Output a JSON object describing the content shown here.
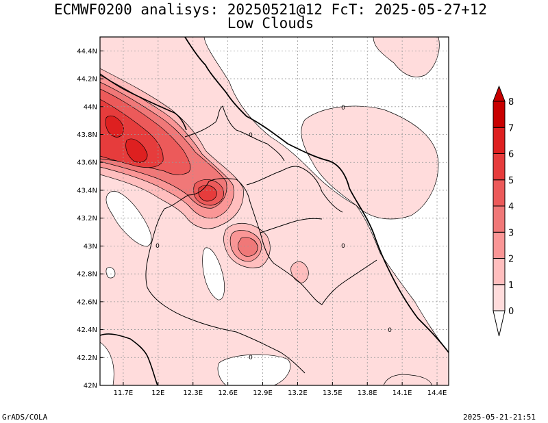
{
  "header": {
    "title": "ECMWF0200 analisys: 20250521@12 FcT: 2025-05-27+12",
    "subtitle": "Low Clouds"
  },
  "map": {
    "lat_labels": [
      "44.4N",
      "44.2N",
      "44N",
      "43.8N",
      "43.6N",
      "43.4N",
      "43.2N",
      "43N",
      "42.8N",
      "42.6N",
      "42.4N",
      "42.2N",
      "42N"
    ],
    "lon_labels": [
      "11.7E",
      "12E",
      "12.3E",
      "12.6E",
      "12.9E",
      "13.2E",
      "13.5E",
      "13.8E",
      "14.1E",
      "14.4E"
    ],
    "lat_range": [
      42.0,
      44.5
    ],
    "lon_range": [
      11.5,
      14.5
    ],
    "contour_labels": [
      "0",
      "0",
      "0",
      "0",
      "0",
      "0"
    ],
    "grid": true
  },
  "colorbar": {
    "labels": [
      "0",
      "1",
      "2",
      "3",
      "4",
      "5",
      "6",
      "7",
      "8"
    ],
    "colors": [
      "#ffffff",
      "#ffdcdc",
      "#ffbebe",
      "#fa9696",
      "#f07878",
      "#ec5a5a",
      "#e63c3c",
      "#de2020",
      "#c80000"
    ]
  },
  "footer": {
    "left": "GrADS/COLA",
    "right": "2025-05-21-21:51"
  },
  "colors": {
    "level_1": "#ffdcdc",
    "level_2": "#ffbebe",
    "level_3": "#fa9696",
    "level_4": "#f07878",
    "level_5": "#ec5a5a",
    "level_6": "#e63c3c",
    "level_7": "#de2020"
  }
}
